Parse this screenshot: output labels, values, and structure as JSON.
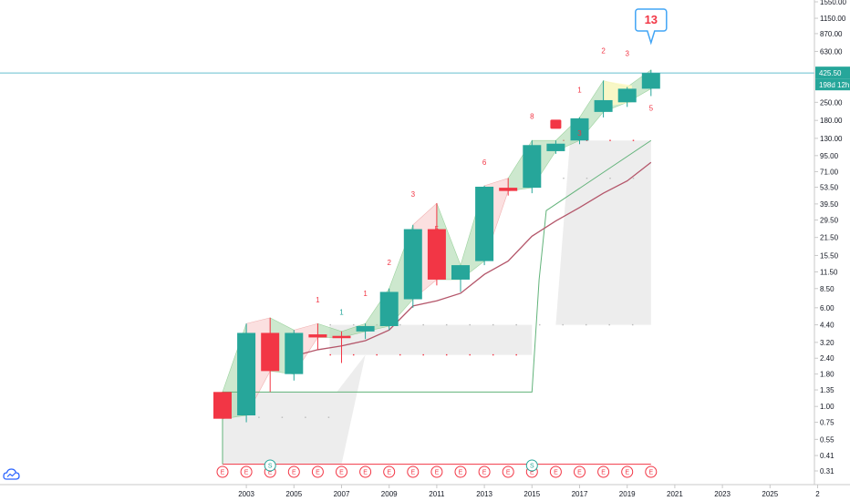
{
  "chart_data": {
    "type": "candlestick",
    "y_scale": "log",
    "y_ticks": [
      "1550.00",
      "1150.00",
      "870.00",
      "630.00",
      "250.00",
      "180.00",
      "130.00",
      "95.00",
      "71.00",
      "53.50",
      "39.50",
      "29.50",
      "21.50",
      "15.50",
      "11.50",
      "8.50",
      "6.00",
      "4.40",
      "3.20",
      "2.40",
      "1.80",
      "1.35",
      "1.00",
      "0.75",
      "0.55",
      "0.41",
      "0.31"
    ],
    "x_ticks": [
      "2003",
      "2005",
      "2007",
      "2009",
      "2011",
      "2013",
      "2015",
      "2017",
      "2019",
      "2021",
      "2023",
      "2025",
      "2"
    ],
    "candles": [
      {
        "x": 2002,
        "open": 1.3,
        "high": 1.3,
        "low": 0.8,
        "close": 0.8
      },
      {
        "x": 2003,
        "open": 0.85,
        "high": 4.5,
        "low": 0.75,
        "close": 3.8
      },
      {
        "x": 2004,
        "open": 3.8,
        "high": 5.0,
        "low": 1.3,
        "close": 1.9
      },
      {
        "x": 2005,
        "open": 1.8,
        "high": 4.0,
        "low": 1.6,
        "close": 3.8
      },
      {
        "x": 2006,
        "open": 3.7,
        "high": 4.5,
        "low": 2.8,
        "close": 3.5
      },
      {
        "x": 2007,
        "open": 3.6,
        "high": 3.9,
        "low": 2.2,
        "close": 3.5
      },
      {
        "x": 2008,
        "open": 3.9,
        "high": 4.5,
        "low": 3.4,
        "close": 4.3
      },
      {
        "x": 2009,
        "open": 4.3,
        "high": 8.5,
        "low": 4.0,
        "close": 8.0
      },
      {
        "x": 2010,
        "open": 7.0,
        "high": 27.0,
        "low": 6.0,
        "close": 25.0
      },
      {
        "x": 2011,
        "open": 25.0,
        "high": 40.0,
        "low": 9.0,
        "close": 10.0
      },
      {
        "x": 2012,
        "open": 10.0,
        "high": 13.0,
        "low": 8.0,
        "close": 13.0
      },
      {
        "x": 2013,
        "open": 14.0,
        "high": 55.0,
        "low": 13.0,
        "close": 54.0
      },
      {
        "x": 2014,
        "open": 53.0,
        "high": 63.0,
        "low": 46.0,
        "close": 50.0
      },
      {
        "x": 2015,
        "open": 53.0,
        "high": 125.0,
        "low": 48.0,
        "close": 115.0
      },
      {
        "x": 2016,
        "open": 103.0,
        "high": 125.0,
        "low": 98.0,
        "close": 118.0
      },
      {
        "x": 2017,
        "open": 125.0,
        "high": 190.0,
        "low": 117.0,
        "close": 187.0
      },
      {
        "x": 2018,
        "open": 210.0,
        "high": 370.0,
        "low": 190.0,
        "close": 260.0
      },
      {
        "x": 2019,
        "open": 250.0,
        "high": 330.0,
        "low": 230.0,
        "close": 320.0
      },
      {
        "x": 2020,
        "open": 320.0,
        "high": 450.0,
        "low": 280.0,
        "close": 425.5
      }
    ],
    "sequential_counts": [
      {
        "x": 2006,
        "label": "1",
        "color": "#f23645",
        "y": 6.6
      },
      {
        "x": 2007,
        "label": "1",
        "color": "#26a69a",
        "y": 5.3
      },
      {
        "x": 2008,
        "label": "1",
        "color": "#f23645",
        "y": 7.4
      },
      {
        "x": 2009,
        "label": "2",
        "color": "#f23645",
        "y": 13.0
      },
      {
        "x": 2010,
        "label": "3",
        "color": "#f23645",
        "y": 45.0
      },
      {
        "x": 2011,
        "label": "5",
        "color": "#f23645",
        "y": 24.0
      },
      {
        "x": 2013,
        "label": "6",
        "color": "#f23645",
        "y": 80.0
      },
      {
        "x": 2015,
        "label": "8",
        "color": "#f23645",
        "y": 185.0
      },
      {
        "x": 2017,
        "label": "1",
        "color": "#f23645",
        "y": 300.0
      },
      {
        "x": 2018,
        "label": "2",
        "color": "#f23645",
        "y": 610.0
      },
      {
        "x": 2019,
        "label": "3",
        "color": "#f23645",
        "y": 580.0
      },
      {
        "x": 2020,
        "label": "5",
        "color": "#f23645",
        "y": 215.0
      },
      {
        "x": 2017,
        "label": "3",
        "color": "#f23645",
        "y": 136.0
      }
    ],
    "callout": {
      "x": 2020,
      "label": "13",
      "color": "#f23645"
    },
    "current_price": {
      "value": "425.50",
      "countdown": "198d 12h",
      "color": "#26a69a"
    },
    "moving_average": [
      {
        "x": 2005,
        "y": 2.5
      },
      {
        "x": 2006,
        "y": 2.8
      },
      {
        "x": 2007,
        "y": 3.0
      },
      {
        "x": 2008,
        "y": 3.3
      },
      {
        "x": 2009,
        "y": 4.0
      },
      {
        "x": 2010,
        "y": 6.2
      },
      {
        "x": 2011,
        "y": 6.8
      },
      {
        "x": 2012,
        "y": 7.8
      },
      {
        "x": 2013,
        "y": 11.0
      },
      {
        "x": 2014,
        "y": 14.0
      },
      {
        "x": 2015,
        "y": 22.0
      },
      {
        "x": 2016,
        "y": 29.0
      },
      {
        "x": 2017,
        "y": 37.0
      },
      {
        "x": 2018,
        "y": 48.0
      },
      {
        "x": 2019,
        "y": 60.0
      },
      {
        "x": 2020,
        "y": 84.0
      }
    ],
    "support_line": [
      {
        "x": 2002,
        "y": 0.35
      },
      {
        "x": 2002,
        "y": 1.3
      },
      {
        "x": 2015,
        "y": 1.3
      },
      {
        "x": 2015.3,
        "y": 10.0
      },
      {
        "x": 2015.6,
        "y": 35.0
      },
      {
        "x": 2020,
        "y": 125.0
      }
    ],
    "earnings_marker": "E",
    "dividend_marker": "S",
    "earnings_x": [
      2002,
      2003,
      2004,
      2005,
      2006,
      2007,
      2008,
      2009,
      2010,
      2011,
      2012,
      2013,
      2014,
      2015,
      2016,
      2017,
      2018,
      2019,
      2020
    ],
    "dividend_x": [
      2004,
      2015
    ]
  },
  "colors": {
    "up": "#26a69a",
    "down": "#f23645",
    "ma": "#b4566a",
    "support": "#62b37a",
    "price_line": "#66bfcf",
    "grid_text": "#131722"
  },
  "icons": {
    "logo": "tradingview-cloud-icon"
  }
}
